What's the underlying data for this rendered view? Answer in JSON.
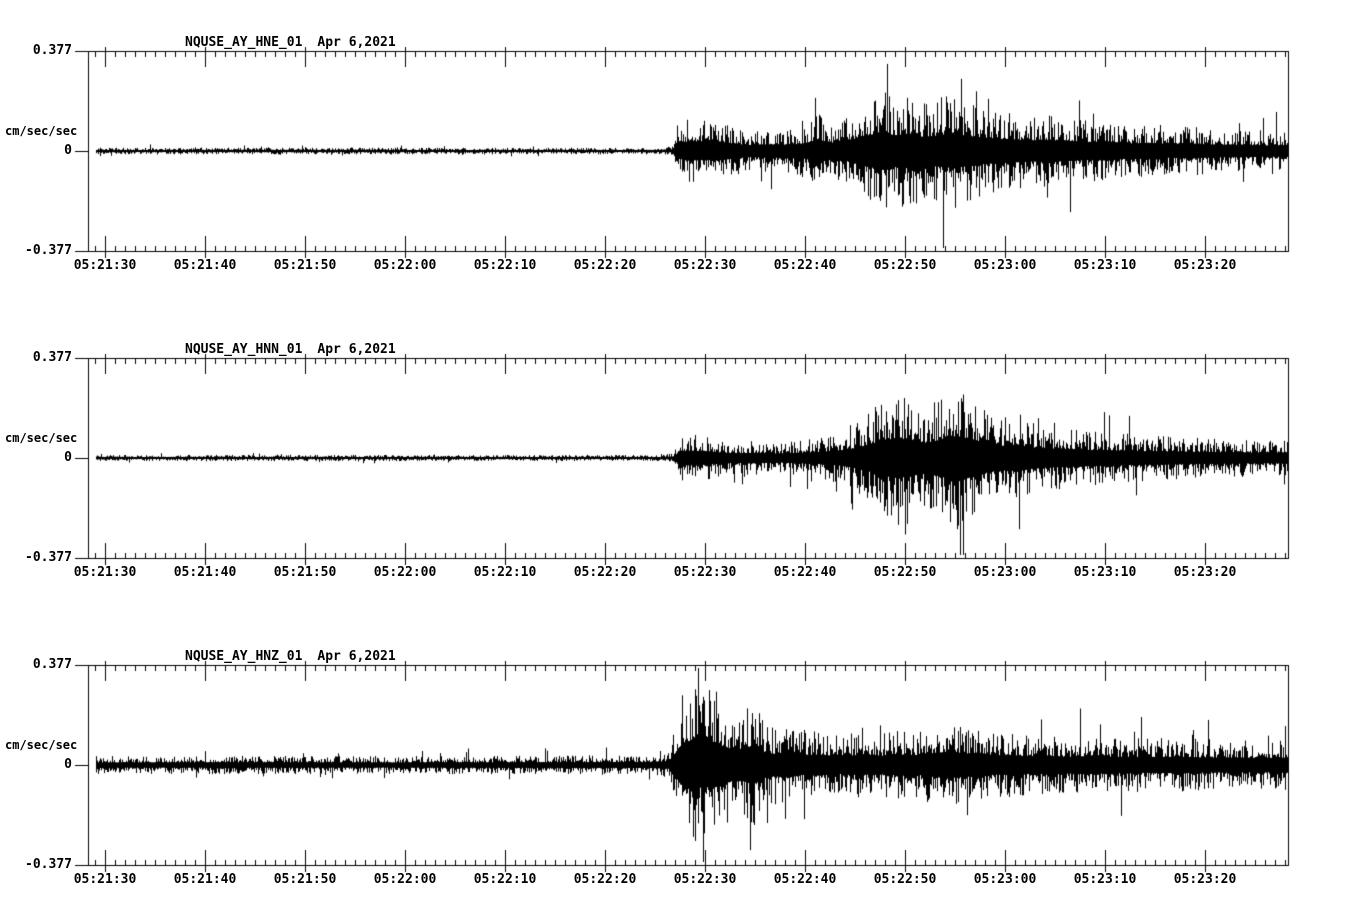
{
  "page": {
    "background_color": "#ffffff",
    "trace_color": "#000000"
  },
  "chart_data": [
    {
      "type": "line",
      "title": "NQUSE_AY_HNE_01  Apr 6,2021",
      "station": "NQUSE_AY_HNE_01",
      "date": "Apr 6,2021",
      "ylabel": "cm/sec/sec",
      "yticks": [
        "0.377",
        "0",
        "-0.377"
      ],
      "ylim": [
        -0.377,
        0.377
      ],
      "x_start": "05:21:28",
      "x_end": "05:23:28",
      "x_tick_labels": [
        "05:21:30",
        "05:21:40",
        "05:21:50",
        "05:22:00",
        "05:22:10",
        "05:22:20",
        "05:22:30",
        "05:22:40",
        "05:22:50",
        "05:23:00",
        "05:23:10",
        "05:23:20"
      ],
      "x_major_interval_sec": 10,
      "x_minor_interval_sec": 1,
      "duration_sec": 120,
      "grid_on": false,
      "legend_position": "none",
      "envelope_t_amp": [
        [
          0,
          0.013
        ],
        [
          20,
          0.014
        ],
        [
          40,
          0.013
        ],
        [
          57,
          0.013
        ],
        [
          58.3,
          0.018
        ],
        [
          59,
          0.1
        ],
        [
          60,
          0.13
        ],
        [
          61.5,
          0.12
        ],
        [
          63,
          0.13
        ],
        [
          64.5,
          0.1
        ],
        [
          66,
          0.08
        ],
        [
          68,
          0.09
        ],
        [
          70,
          0.085
        ],
        [
          71.5,
          0.1
        ],
        [
          73,
          0.15
        ],
        [
          74.5,
          0.11
        ],
        [
          76,
          0.14
        ],
        [
          77.5,
          0.2
        ],
        [
          79,
          0.24
        ],
        [
          80.5,
          0.21
        ],
        [
          82,
          0.23
        ],
        [
          83.5,
          0.19
        ],
        [
          85,
          0.21
        ],
        [
          86.5,
          0.23
        ],
        [
          88,
          0.2
        ],
        [
          90,
          0.17
        ],
        [
          92,
          0.16
        ],
        [
          94,
          0.14
        ],
        [
          96,
          0.15
        ],
        [
          98,
          0.13
        ],
        [
          100,
          0.12
        ],
        [
          102,
          0.13
        ],
        [
          104,
          0.1
        ],
        [
          106,
          0.11
        ],
        [
          108,
          0.09
        ],
        [
          110,
          0.1
        ],
        [
          113,
          0.085
        ],
        [
          116,
          0.08
        ],
        [
          118,
          0.075
        ],
        [
          120,
          0.08
        ]
      ]
    },
    {
      "type": "line",
      "title": "NQUSE_AY_HNN_01  Apr 6,2021",
      "station": "NQUSE_AY_HNN_01",
      "date": "Apr 6,2021",
      "ylabel": "cm/sec/sec",
      "yticks": [
        "0.377",
        "0",
        "-0.377"
      ],
      "ylim": [
        -0.377,
        0.377
      ],
      "x_start": "05:21:28",
      "x_end": "05:23:28",
      "x_tick_labels": [
        "05:21:30",
        "05:21:40",
        "05:21:50",
        "05:22:00",
        "05:22:10",
        "05:22:20",
        "05:22:30",
        "05:22:40",
        "05:22:50",
        "05:23:00",
        "05:23:10",
        "05:23:20"
      ],
      "x_major_interval_sec": 10,
      "x_minor_interval_sec": 1,
      "duration_sec": 120,
      "grid_on": false,
      "legend_position": "none",
      "envelope_t_amp": [
        [
          0,
          0.012
        ],
        [
          20,
          0.013
        ],
        [
          40,
          0.012
        ],
        [
          57,
          0.012
        ],
        [
          58.5,
          0.02
        ],
        [
          59.3,
          0.09
        ],
        [
          60.5,
          0.1
        ],
        [
          62,
          0.085
        ],
        [
          63.5,
          0.07
        ],
        [
          65,
          0.065
        ],
        [
          67,
          0.07
        ],
        [
          69,
          0.06
        ],
        [
          71,
          0.07
        ],
        [
          73,
          0.08
        ],
        [
          75,
          0.1
        ],
        [
          76.5,
          0.13
        ],
        [
          78,
          0.18
        ],
        [
          79.5,
          0.24
        ],
        [
          81,
          0.27
        ],
        [
          82.5,
          0.23
        ],
        [
          84,
          0.2
        ],
        [
          85.5,
          0.26
        ],
        [
          87,
          0.29
        ],
        [
          88.5,
          0.25
        ],
        [
          90,
          0.19
        ],
        [
          91.5,
          0.16
        ],
        [
          93,
          0.18
        ],
        [
          94.5,
          0.14
        ],
        [
          96,
          0.13
        ],
        [
          98,
          0.12
        ],
        [
          100,
          0.11
        ],
        [
          103,
          0.1
        ],
        [
          106,
          0.09
        ],
        [
          109,
          0.085
        ],
        [
          112,
          0.08
        ],
        [
          115,
          0.075
        ],
        [
          118,
          0.07
        ],
        [
          120,
          0.075
        ]
      ]
    },
    {
      "type": "line",
      "title": "NQUSE_AY_HNZ_01  Apr 6,2021",
      "station": "NQUSE_AY_HNZ_01",
      "date": "Apr 6,2021",
      "ylabel": "cm/sec/sec",
      "yticks": [
        "0.377",
        "0",
        "-0.377"
      ],
      "ylim": [
        -0.377,
        0.377
      ],
      "x_start": "05:21:28",
      "x_end": "05:23:28",
      "x_tick_labels": [
        "05:21:30",
        "05:21:40",
        "05:21:50",
        "05:22:00",
        "05:22:10",
        "05:22:20",
        "05:22:30",
        "05:22:40",
        "05:22:50",
        "05:23:00",
        "05:23:10",
        "05:23:20"
      ],
      "x_major_interval_sec": 10,
      "x_minor_interval_sec": 1,
      "duration_sec": 120,
      "grid_on": false,
      "legend_position": "none",
      "envelope_t_amp": [
        [
          0,
          0.035
        ],
        [
          15,
          0.037
        ],
        [
          30,
          0.035
        ],
        [
          45,
          0.038
        ],
        [
          56,
          0.04
        ],
        [
          58,
          0.05
        ],
        [
          58.8,
          0.18
        ],
        [
          59.5,
          0.3
        ],
        [
          60.5,
          0.34
        ],
        [
          61.5,
          0.29
        ],
        [
          62.5,
          0.31
        ],
        [
          63.5,
          0.25
        ],
        [
          64.5,
          0.21
        ],
        [
          65.5,
          0.22
        ],
        [
          66.5,
          0.26
        ],
        [
          67.5,
          0.18
        ],
        [
          68.5,
          0.15
        ],
        [
          70,
          0.17
        ],
        [
          71.5,
          0.13
        ],
        [
          73,
          0.14
        ],
        [
          75,
          0.12
        ],
        [
          77,
          0.13
        ],
        [
          79,
          0.12
        ],
        [
          81,
          0.14
        ],
        [
          83,
          0.13
        ],
        [
          84.5,
          0.16
        ],
        [
          86,
          0.18
        ],
        [
          87.5,
          0.15
        ],
        [
          89,
          0.17
        ],
        [
          90.5,
          0.13
        ],
        [
          92,
          0.13
        ],
        [
          94,
          0.12
        ],
        [
          96,
          0.12
        ],
        [
          98,
          0.11
        ],
        [
          100,
          0.12
        ],
        [
          103,
          0.11
        ],
        [
          106,
          0.105
        ],
        [
          109,
          0.11
        ],
        [
          112,
          0.1
        ],
        [
          115,
          0.1
        ],
        [
          118,
          0.095
        ],
        [
          120,
          0.1
        ]
      ]
    }
  ]
}
